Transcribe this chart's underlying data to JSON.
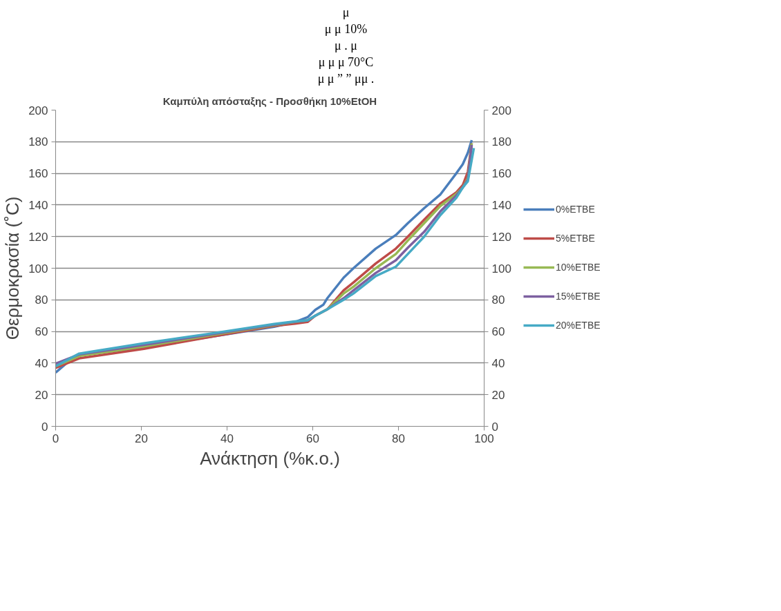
{
  "chart_data": {
    "type": "line",
    "title": "Καμπύλη απόσταξης - Προσθήκη 10%EtOH",
    "xlabel": "Ανάκτηση (%κ.ο.)",
    "ylabel": "Θερμοκρασία (˚C)",
    "xlim": [
      0,
      100
    ],
    "xticks": [
      0,
      20,
      40,
      60,
      80,
      100
    ],
    "ylim": [
      0,
      200
    ],
    "yticks": [
      0,
      20,
      40,
      60,
      80,
      100,
      120,
      140,
      160,
      180,
      200
    ],
    "y2lim": [
      0,
      200
    ],
    "y2ticks": [
      0,
      20,
      40,
      60,
      80,
      100,
      120,
      140,
      160,
      180,
      200
    ],
    "grid": "y",
    "legend": "right",
    "marker": "none",
    "line_style": "solid",
    "annotations": [
      "μ",
      "μ μ 10%",
      "μ . μ",
      "μ μ μ 70°C",
      "μ μ ” ” μμ ."
    ],
    "series": [
      {
        "name": "0%ETBE",
        "color": "#4a7ebb",
        "x": [
          0,
          3,
          5.5,
          20.6,
          37,
          51,
          55.9,
          58.8,
          60.6,
          62.5,
          63.4,
          67.2,
          69.5,
          74.7,
          79.4,
          82.2,
          86,
          89.8,
          93.5,
          95,
          96.2,
          97.1
        ],
        "values": [
          34,
          41,
          45,
          50,
          57,
          63,
          66,
          69,
          73.7,
          77,
          81,
          94,
          100,
          112.4,
          121,
          128.5,
          138,
          146.7,
          160,
          165.7,
          173,
          181
        ]
      },
      {
        "name": "5%ETBE",
        "color": "#be4b48",
        "x": [
          0,
          5.5,
          20.6,
          37,
          51,
          55.9,
          58.8,
          60.6,
          63.4,
          67.2,
          69.5,
          74.7,
          79.4,
          82.2,
          86,
          89.8,
          93.5,
          95,
          96.2,
          97.1
        ],
        "values": [
          37,
          43,
          49,
          57,
          63.5,
          65,
          66,
          70,
          74,
          86,
          91,
          103,
          112.4,
          120,
          130.7,
          141,
          148,
          152.5,
          161,
          179
        ]
      },
      {
        "name": "10%ETBE",
        "color": "#98b954",
        "x": [
          0,
          5.5,
          20.6,
          37,
          51,
          55.9,
          58.8,
          60.6,
          63.4,
          67.2,
          69.5,
          74.7,
          79.4,
          82.2,
          86,
          89.8,
          93.5,
          95,
          96.2,
          97.1
        ],
        "values": [
          38,
          44.5,
          50.5,
          58,
          64,
          66,
          67,
          70,
          74,
          84,
          88.3,
          100,
          109,
          117.5,
          128.5,
          139.4,
          147,
          151,
          157,
          179
        ]
      },
      {
        "name": "15%ETBE",
        "color": "#7d60a0",
        "x": [
          0,
          5.5,
          20.6,
          37,
          51,
          55.9,
          58.8,
          60.6,
          63.4,
          67.2,
          69.5,
          74.7,
          79.4,
          82.2,
          86,
          89.8,
          93.5,
          95,
          96.2,
          97.1
        ],
        "values": [
          39.7,
          45.5,
          51.5,
          58.5,
          64.3,
          66.2,
          67,
          70,
          74,
          81,
          86,
          97,
          105,
          113,
          123,
          136,
          146,
          151,
          156,
          178
        ]
      },
      {
        "name": "20%ETBE",
        "color": "#46aac5",
        "x": [
          0,
          5.5,
          20.6,
          37,
          51,
          55.9,
          58.8,
          60.6,
          63.4,
          67.2,
          69.5,
          74.7,
          79.4,
          82.2,
          86,
          89.8,
          93.5,
          95,
          96.2,
          97.6
        ],
        "values": [
          38,
          46,
          52.5,
          59,
          64.7,
          66.4,
          67,
          70,
          74,
          80,
          84,
          95,
          101,
          109,
          120,
          133.6,
          144.5,
          151,
          155,
          176
        ]
      }
    ]
  }
}
